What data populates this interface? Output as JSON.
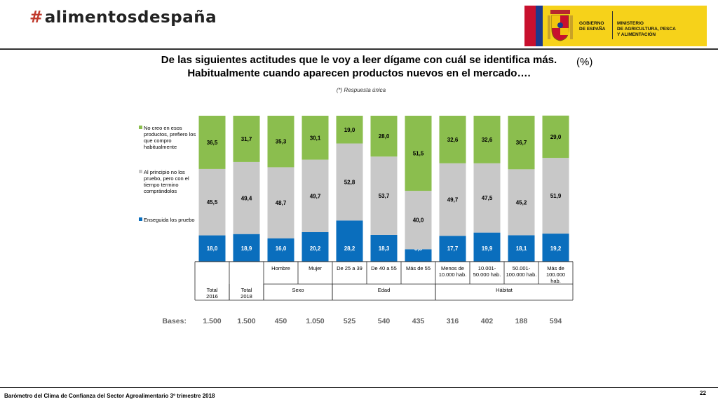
{
  "header": {
    "logo_text": "alimentosdespaña",
    "gov_left": [
      "GOBIERNO",
      "DE ESPAÑA"
    ],
    "gov_right": [
      "MINISTERIO",
      "DE AGRICULTURA, PESCA",
      "Y ALIMENTACIÓN"
    ]
  },
  "title_line1": "De las siguientes actitudes que le voy a leer dígame con cuál se identifica más.",
  "title_line2": "Habitualmente cuando aparecen productos nuevos en el mercado….",
  "percent_label": "(%)",
  "subtitle": "(*) Respuesta única",
  "chart_data": {
    "type": "bar",
    "stacked": true,
    "unit": "%",
    "categories": [
      "Total 2016",
      "Total 2018",
      "Hombre",
      "Mujer",
      "De 25 a 39",
      "De 40 a 55",
      "Más de 55",
      "Menos de 10.000 hab.",
      "10.001-50.000 hab.",
      "50.001-100.000 hab.",
      "Más de 100.000 hab."
    ],
    "sub_labels": [
      "",
      "",
      "Hombre",
      "Mujer",
      "De 25 a 39",
      "De 40 a 55",
      "Más de 55",
      "Menos de|10.000 hab.",
      "10.001-|50.000 hab.",
      "50.001-|100.000 hab.",
      "Más de|100.000|hab."
    ],
    "groups": [
      {
        "label": "Total|2016",
        "span": [
          0,
          0
        ]
      },
      {
        "label": "Total|2018",
        "span": [
          1,
          1
        ]
      },
      {
        "label": "Sexo",
        "span": [
          2,
          3
        ]
      },
      {
        "label": "Edad",
        "span": [
          4,
          6
        ]
      },
      {
        "label": "Hábitat",
        "span": [
          7,
          10
        ]
      }
    ],
    "series": [
      {
        "name": "Enseguida los pruebo",
        "color": "#0a6ebd",
        "label_color": "#ffffff",
        "values": [
          18.0,
          18.9,
          16.0,
          20.2,
          28.2,
          18.3,
          8.5,
          17.7,
          19.9,
          18.1,
          19.2
        ],
        "labels": [
          "18,0",
          "18,9",
          "16,0",
          "20,2",
          "28,2",
          "18,3",
          "8,5",
          "17,7",
          "19,9",
          "18,1",
          "19,2"
        ]
      },
      {
        "name": "Al principio no los pruebo, pero con el tiempo termino comprándolos",
        "color": "#c8c8c8",
        "label_color": "#000000",
        "values": [
          45.5,
          49.4,
          48.7,
          49.7,
          52.8,
          53.7,
          40.0,
          49.7,
          47.5,
          45.2,
          51.9
        ],
        "labels": [
          "45,5",
          "49,4",
          "48,7",
          "49,7",
          "52,8",
          "53,7",
          "40,0",
          "49,7",
          "47,5",
          "45,2",
          "51,9"
        ]
      },
      {
        "name": "No creo en esos productos, prefiero los que compro habitualmente",
        "color": "#8bbe4e",
        "label_color": "#000000",
        "values": [
          36.5,
          31.7,
          35.3,
          30.1,
          19.0,
          28.0,
          51.5,
          32.6,
          32.6,
          36.7,
          29.0
        ],
        "labels": [
          "36,5",
          "31,7",
          "35,3",
          "30,1",
          "19,0",
          "28,0",
          "51,5",
          "32,6",
          "32,6",
          "36,7",
          "29,0"
        ]
      }
    ],
    "legend": [
      {
        "label": "No creo en esos|productos, prefiero los|que compro|habitualmente",
        "color": "#8bbe4e"
      },
      {
        "label": "Al principio no los|pruebo, pero con el|tiempo termino|comprándolos",
        "color": "#c8c8c8"
      },
      {
        "label": "Enseguida los pruebo",
        "color": "#0a6ebd"
      }
    ],
    "ylim": [
      0,
      100
    ]
  },
  "bases": {
    "label": "Bases:",
    "values": [
      "1.500",
      "1.500",
      "450",
      "1.050",
      "525",
      "540",
      "435",
      "316",
      "402",
      "188",
      "594"
    ]
  },
  "footer": {
    "text": "Barómetro del Clima de Confianza del Sector Agroalimentario 3º trimestre 2018",
    "page": "22"
  }
}
